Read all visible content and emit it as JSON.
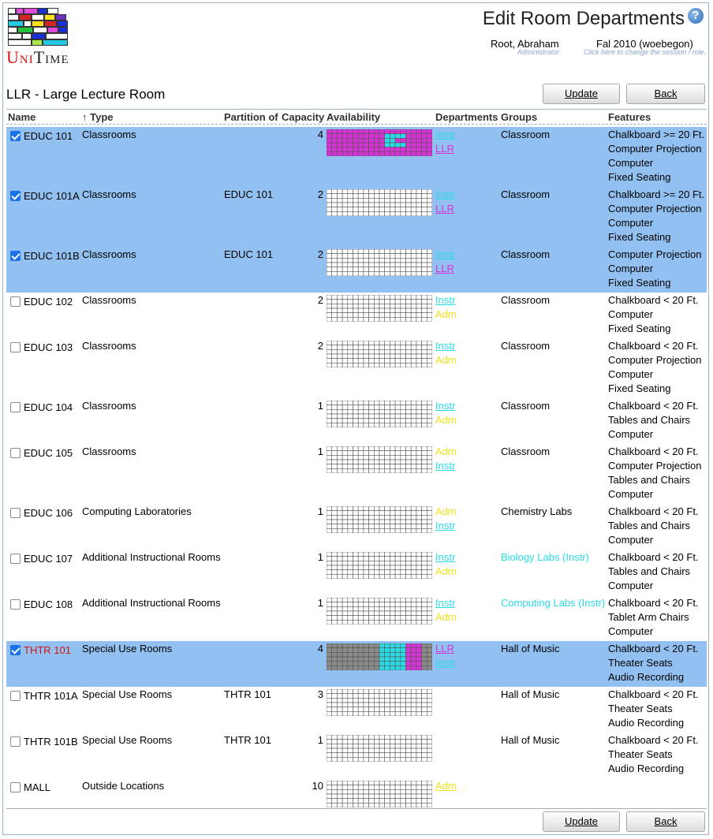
{
  "header": {
    "page_title": "Edit Room Departments",
    "user_name": "Root, Abraham",
    "user_role": "Administrator",
    "session_name": "Fal 2010 (woebegon)",
    "session_hint": "Click here to change the session / role.",
    "logo_text": "UniTime"
  },
  "room_title": "LLR - Large Lecture Room",
  "buttons": {
    "update": "Update",
    "back": "Back"
  },
  "columns": {
    "name": "Name",
    "type": "↑ Type",
    "partition": "Partition of",
    "capacity": "Capacity",
    "availability": "Availability",
    "departments": "Departments",
    "groups": "Groups",
    "features": "Features"
  },
  "colors": {
    "selected_row": "#92c0f0",
    "dept_instr": "#2adbe6",
    "dept_llr": "#d633d6",
    "dept_adm": "#f2e21a",
    "grid_magenta": "#d633d6",
    "grid_cyan": "#2adbe6",
    "grid_gray": "#8a8a8a"
  },
  "rooms": [
    {
      "name": "EDUC 101",
      "checked": true,
      "type": "Classrooms",
      "partition": "",
      "capacity": "4",
      "avail": "magenta",
      "depts": [
        {
          "label": "Instr",
          "color": "#2adbe6",
          "link": true
        },
        {
          "label": "LLR",
          "color": "#d633d6",
          "link": true
        }
      ],
      "group": "Classroom",
      "group_color": "",
      "features": [
        "Chalkboard >= 20 Ft.",
        "Computer Projection",
        "Computer",
        "Fixed Seating"
      ]
    },
    {
      "name": "EDUC 101A",
      "checked": true,
      "type": "Classrooms",
      "partition": "EDUC 101",
      "capacity": "2",
      "avail": "white",
      "depts": [
        {
          "label": "Instr",
          "color": "#2adbe6",
          "link": true
        },
        {
          "label": "LLR",
          "color": "#d633d6",
          "link": true
        }
      ],
      "group": "Classroom",
      "group_color": "",
      "features": [
        "Chalkboard >= 20 Ft.",
        "Computer Projection",
        "Computer",
        "Fixed Seating"
      ]
    },
    {
      "name": "EDUC 101B",
      "checked": true,
      "type": "Classrooms",
      "partition": "EDUC 101",
      "capacity": "2",
      "avail": "white",
      "depts": [
        {
          "label": "Instr",
          "color": "#2adbe6",
          "link": true
        },
        {
          "label": "LLR",
          "color": "#d633d6",
          "link": true
        }
      ],
      "group": "Classroom",
      "group_color": "",
      "features": [
        "Computer Projection",
        "Computer",
        "Fixed Seating"
      ]
    },
    {
      "name": "EDUC 102",
      "checked": false,
      "type": "Classrooms",
      "partition": "",
      "capacity": "2",
      "avail": "white",
      "depts": [
        {
          "label": "Instr",
          "color": "#2adbe6",
          "link": true
        },
        {
          "label": "Adm",
          "color": "#f2e21a",
          "link": false
        }
      ],
      "group": "Classroom",
      "group_color": "",
      "features": [
        "Chalkboard < 20 Ft.",
        "Computer",
        "Fixed Seating"
      ]
    },
    {
      "name": "EDUC 103",
      "checked": false,
      "type": "Classrooms",
      "partition": "",
      "capacity": "2",
      "avail": "white",
      "depts": [
        {
          "label": "Instr",
          "color": "#2adbe6",
          "link": true
        },
        {
          "label": "Adm",
          "color": "#f2e21a",
          "link": false
        }
      ],
      "group": "Classroom",
      "group_color": "",
      "features": [
        "Chalkboard < 20 Ft.",
        "Computer Projection",
        "Computer",
        "Fixed Seating"
      ]
    },
    {
      "name": "EDUC 104",
      "checked": false,
      "type": "Classrooms",
      "partition": "",
      "capacity": "1",
      "avail": "white",
      "depts": [
        {
          "label": "Instr",
          "color": "#2adbe6",
          "link": true
        },
        {
          "label": "Adm",
          "color": "#f2e21a",
          "link": false
        }
      ],
      "group": "Classroom",
      "group_color": "",
      "features": [
        "Chalkboard < 20 Ft.",
        "Tables and Chairs",
        "Computer"
      ]
    },
    {
      "name": "EDUC 105",
      "checked": false,
      "type": "Classrooms",
      "partition": "",
      "capacity": "1",
      "avail": "white",
      "depts": [
        {
          "label": "Adm",
          "color": "#f2e21a",
          "link": false
        },
        {
          "label": "Instr",
          "color": "#2adbe6",
          "link": true
        }
      ],
      "group": "Classroom",
      "group_color": "",
      "features": [
        "Chalkboard < 20 Ft.",
        "Computer Projection",
        "Tables and Chairs",
        "Computer"
      ]
    },
    {
      "name": "EDUC 106",
      "checked": false,
      "type": "Computing Laboratories",
      "partition": "",
      "capacity": "1",
      "avail": "white",
      "depts": [
        {
          "label": "Adm",
          "color": "#f2e21a",
          "link": false
        },
        {
          "label": "Instr",
          "color": "#2adbe6",
          "link": true
        }
      ],
      "group": "Chemistry Labs",
      "group_color": "",
      "features": [
        "Chalkboard < 20 Ft.",
        "Tables and Chairs",
        "Computer"
      ]
    },
    {
      "name": "EDUC 107",
      "checked": false,
      "type": "Additional Instructional Rooms",
      "partition": "",
      "capacity": "1",
      "avail": "white",
      "depts": [
        {
          "label": "Instr",
          "color": "#2adbe6",
          "link": true
        },
        {
          "label": "Adm",
          "color": "#f2e21a",
          "link": false
        }
      ],
      "group": "Biology Labs (Instr)",
      "group_color": "#2adbe6",
      "features": [
        "Chalkboard < 20 Ft.",
        "Tables and Chairs",
        "Computer"
      ]
    },
    {
      "name": "EDUC 108",
      "checked": false,
      "type": "Additional Instructional Rooms",
      "partition": "",
      "capacity": "1",
      "avail": "white",
      "depts": [
        {
          "label": "Instr",
          "color": "#2adbe6",
          "link": true
        },
        {
          "label": "Adm",
          "color": "#f2e21a",
          "link": false
        }
      ],
      "group": "Computing Labs (Instr)",
      "group_color": "#2adbe6",
      "features": [
        "Chalkboard < 20 Ft.",
        "Tablet Arm Chairs",
        "Computer"
      ]
    },
    {
      "name": "THTR 101",
      "checked": true,
      "name_color": "#d21414",
      "type": "Special Use Rooms",
      "partition": "",
      "capacity": "4",
      "avail": "thtr",
      "depts": [
        {
          "label": "LLR",
          "color": "#d633d6",
          "link": true
        },
        {
          "label": "Instr",
          "color": "#2adbe6",
          "link": true
        }
      ],
      "group": "Hall of Music",
      "group_color": "",
      "features": [
        "Chalkboard < 20 Ft.",
        "Theater Seats",
        "Audio Recording"
      ]
    },
    {
      "name": "THTR 101A",
      "checked": false,
      "type": "Special Use Rooms",
      "partition": "THTR 101",
      "capacity": "3",
      "avail": "white",
      "depts": [],
      "group": "Hall of Music",
      "group_color": "",
      "features": [
        "Chalkboard < 20 Ft.",
        "Theater Seats",
        "Audio Recording"
      ]
    },
    {
      "name": "THTR 101B",
      "checked": false,
      "type": "Special Use Rooms",
      "partition": "THTR 101",
      "capacity": "1",
      "avail": "white",
      "depts": [],
      "group": "Hall of Music",
      "group_color": "",
      "features": [
        "Chalkboard < 20 Ft.",
        "Theater Seats",
        "Audio Recording"
      ]
    },
    {
      "name": "MALL",
      "checked": false,
      "type": "Outside Locations",
      "partition": "",
      "capacity": "10",
      "avail": "white",
      "depts": [
        {
          "label": "Adm",
          "color": "#f2e21a",
          "link": true
        }
      ],
      "group": "",
      "group_color": "",
      "features": []
    }
  ]
}
